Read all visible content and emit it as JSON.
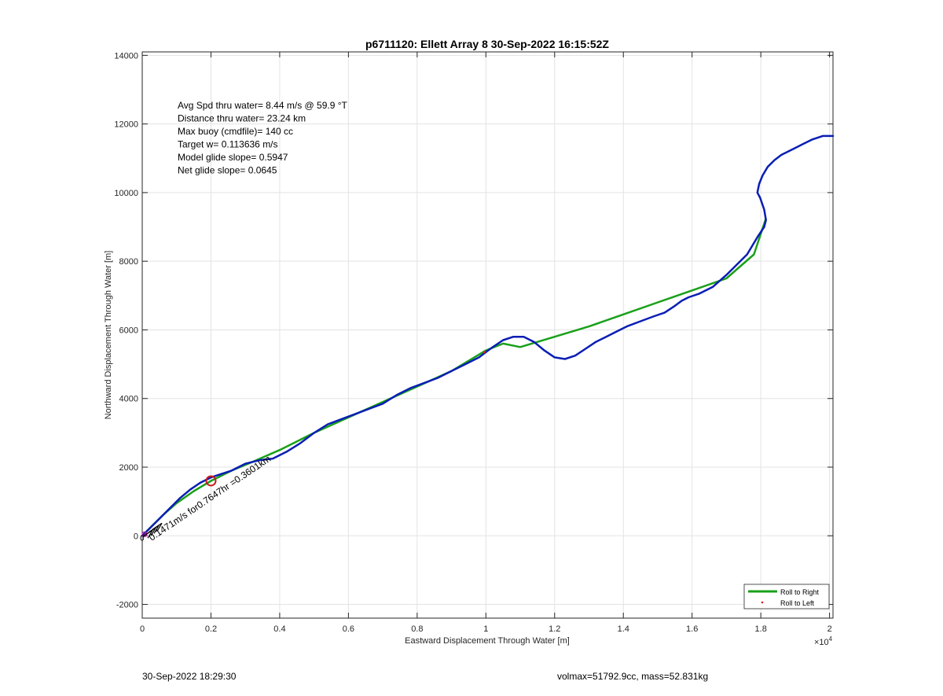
{
  "chart_data": {
    "type": "line",
    "title": "p6711120: Ellett Array 8 30-Sep-2022 16:15:52Z",
    "xlabel": "Eastward Displacement Through Water [m]",
    "ylabel": "Northward Displacement Through Water [m]",
    "xlim": [
      0,
      20100
    ],
    "ylim": [
      -2400,
      14100
    ],
    "x_ticks": [
      0,
      2000,
      4000,
      6000,
      8000,
      10000,
      12000,
      14000,
      16000,
      18000,
      20000
    ],
    "x_tick_labels": [
      "0",
      "0.2",
      "0.4",
      "0.6",
      "0.8",
      "1",
      "1.2",
      "1.4",
      "1.6",
      "1.8",
      "2"
    ],
    "x_exponent_label": "×10",
    "x_exponent_power": "4",
    "y_ticks": [
      -2000,
      0,
      2000,
      4000,
      6000,
      8000,
      10000,
      12000,
      14000
    ],
    "y_tick_labels": [
      "-2000",
      "0",
      "2000",
      "4000",
      "6000",
      "8000",
      "10000",
      "12000",
      "14000"
    ],
    "grid": true,
    "legend_position": "bottom-right",
    "legend": [
      "Roll to Right",
      "Roll to Left"
    ],
    "colors": {
      "roll_right": "#1aa01a",
      "track": "#0a1eb4",
      "roll_left": "#e02020",
      "marker": "#cc1a1a",
      "start": "#b01ab0"
    },
    "series": [
      {
        "name": "Roll to Right",
        "style": "line",
        "x": [
          0,
          200,
          600,
          1000,
          1500,
          2000,
          2600,
          3200,
          4000,
          5000,
          6000,
          7000,
          8000,
          9000,
          10000,
          10500,
          11000,
          12000,
          13000,
          14000,
          15000,
          16000,
          17000,
          17800,
          18150
        ],
        "y": [
          0,
          200,
          600,
          950,
          1300,
          1600,
          1900,
          2150,
          2500,
          3000,
          3450,
          3900,
          4350,
          4800,
          5400,
          5600,
          5500,
          5800,
          6100,
          6450,
          6800,
          7150,
          7500,
          8200,
          9250
        ]
      },
      {
        "name": "Roll to Left",
        "style": "markers",
        "x": [
          100,
          9950
        ],
        "y": [
          50,
          5350
        ]
      },
      {
        "style": "line",
        "x": [
          0,
          150,
          300,
          500,
          700,
          900,
          1100,
          1400,
          1700,
          2000,
          2300,
          2600,
          3000,
          3400,
          3800,
          4200,
          4600,
          5000,
          5400,
          5800,
          6200,
          6600,
          7000,
          7400,
          7800,
          8200,
          8600,
          9000,
          9400,
          9800,
          10000,
          10200,
          10500,
          10800,
          11100,
          11400,
          11700,
          12000,
          12300,
          12600,
          12900,
          13200,
          13500,
          13800,
          14100,
          14500,
          14900,
          15200,
          15500,
          15700,
          15900,
          16200,
          16600,
          17000,
          17300,
          17600,
          17900,
          18100,
          18150,
          18100,
          17980,
          17900,
          17950,
          18050,
          18200,
          18400,
          18600,
          18900,
          19200,
          19500,
          19800,
          20100
        ],
        "y": [
          0,
          150,
          300,
          500,
          700,
          900,
          1100,
          1350,
          1550,
          1700,
          1800,
          1900,
          2100,
          2200,
          2250,
          2450,
          2700,
          3000,
          3250,
          3400,
          3550,
          3700,
          3850,
          4100,
          4300,
          4450,
          4600,
          4800,
          5000,
          5200,
          5350,
          5500,
          5700,
          5800,
          5800,
          5650,
          5400,
          5200,
          5150,
          5250,
          5450,
          5650,
          5800,
          5950,
          6100,
          6250,
          6400,
          6500,
          6700,
          6850,
          6950,
          7050,
          7250,
          7600,
          7900,
          8200,
          8700,
          9000,
          9200,
          9500,
          9850,
          10000,
          10250,
          10500,
          10750,
          10950,
          11100,
          11250,
          11400,
          11550,
          11650,
          11650
        ]
      }
    ],
    "annotations": [
      {
        "text": "Avg Spd thru water=  8.44 m/s @  59.9 °T"
      },
      {
        "text": "Distance thru water= 23.24 km"
      },
      {
        "text": "Max buoy (cmdfile)= 140 cc"
      },
      {
        "text": "Target w= 0.113636 m/s"
      },
      {
        "text": "Model glide slope= 0.5947"
      },
      {
        "text": "Net glide slope= 0.0645"
      }
    ],
    "current_label": "0.1471m/s for0.7647hr =0.3601km",
    "start_label": "0",
    "marker_point": {
      "x": 2000,
      "y": 1600
    }
  },
  "footer": {
    "timestamp": "30-Sep-2022 18:29:30",
    "volume_mass": "volmax=51792.9cc, mass=52.831kg"
  }
}
